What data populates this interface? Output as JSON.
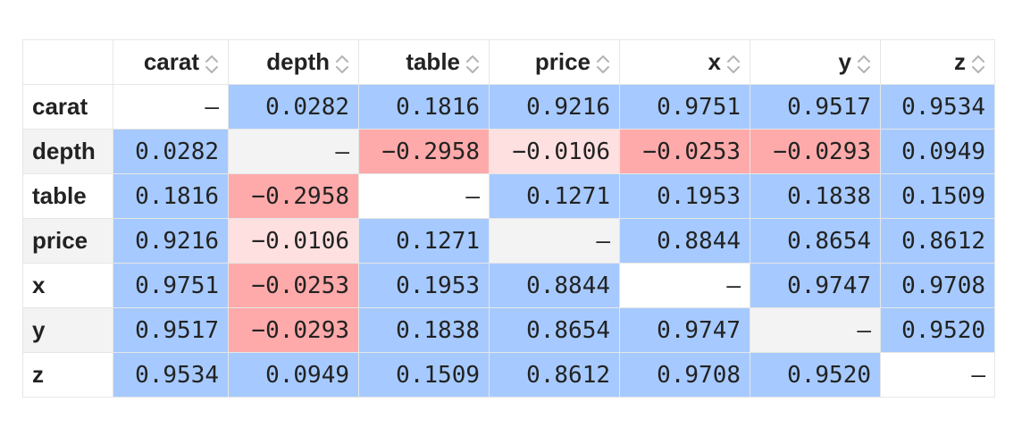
{
  "table": {
    "corner_label": "",
    "columns": [
      "carat",
      "depth",
      "table",
      "price",
      "x",
      "y",
      "z"
    ],
    "rows": [
      {
        "label": "carat",
        "cells": [
          "—",
          "0.0282",
          "0.1816",
          "0.9216",
          "0.9751",
          "0.9517",
          "0.9534"
        ]
      },
      {
        "label": "depth",
        "cells": [
          "0.0282",
          "—",
          "−0.2958",
          "−0.0106",
          "−0.0253",
          "−0.0293",
          "0.0949"
        ]
      },
      {
        "label": "table",
        "cells": [
          "0.1816",
          "−0.2958",
          "—",
          "0.1271",
          "0.1953",
          "0.1838",
          "0.1509"
        ]
      },
      {
        "label": "price",
        "cells": [
          "0.9216",
          "−0.0106",
          "0.1271",
          "—",
          "0.8844",
          "0.8654",
          "0.8612"
        ]
      },
      {
        "label": "x",
        "cells": [
          "0.9751",
          "−0.0253",
          "0.1953",
          "0.8844",
          "—",
          "0.9747",
          "0.9708"
        ]
      },
      {
        "label": "y",
        "cells": [
          "0.9517",
          "−0.0293",
          "0.1838",
          "0.8654",
          "0.9747",
          "—",
          "0.9520"
        ]
      },
      {
        "label": "z",
        "cells": [
          "0.9534",
          "0.0949",
          "0.1509",
          "0.8612",
          "0.9708",
          "0.9520",
          "—"
        ]
      }
    ]
  },
  "colors": {
    "positive": "#a6caff",
    "negative_strong": "#ffaaaa",
    "negative_light": "#ffe0e0",
    "row_stripe": "#f3f3f3",
    "icon": "#b3b3b3"
  },
  "icons": {
    "sort": "sort-updown-icon"
  }
}
